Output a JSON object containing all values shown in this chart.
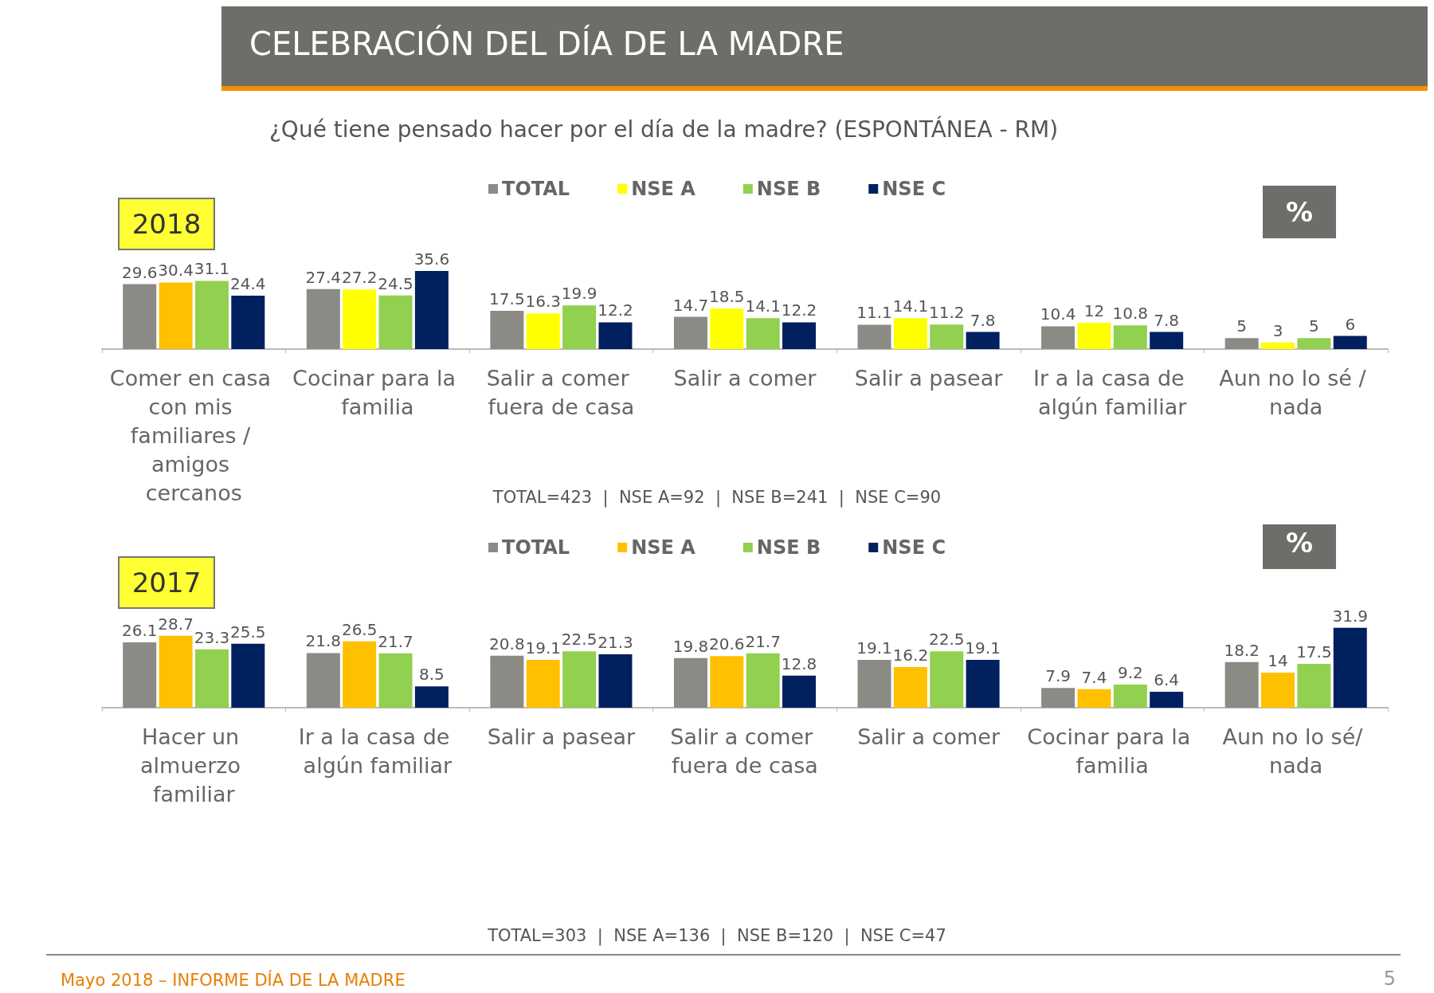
{
  "chart_data": [
    {
      "type": "bar",
      "title": "CELEBRACIÓN DEL DÍA DE LA MADRE",
      "subtitle": "¿Qué tiene pensado hacer por el día de la madre? (ESPONTÁNEA - RM)",
      "categories": [
        "Comer en casa con mis familiares / amigos cercanos",
        "Cocinar para la familia",
        "Salir a comer fuera de casa",
        "Salir a comer",
        "Salir a pasear",
        "Ir a la casa de algún familiar",
        "Aun no lo sé / nada"
      ],
      "series": [
        {
          "name": "TOTAL",
          "color": "#8c8a85",
          "values": [
            29.6,
            27.4,
            17.5,
            14.7,
            11.1,
            10.4,
            5
          ]
        },
        {
          "name": "NSE A",
          "color": "#ffff00",
          "colors": [
            "#ffc000",
            "#ffff00",
            "#ffff00",
            "#ffff00",
            "#ffff00",
            "#ffff00",
            "#ffff00"
          ],
          "values": [
            30.4,
            27.2,
            16.3,
            18.5,
            14.1,
            12,
            3
          ]
        },
        {
          "name": "NSE B",
          "color": "#92d050",
          "values": [
            31.1,
            24.5,
            19.9,
            14.1,
            11.2,
            10.8,
            5
          ]
        },
        {
          "name": "NSE C",
          "color": "#002060",
          "values": [
            24.4,
            35.6,
            12.2,
            12.2,
            7.8,
            7.8,
            6
          ]
        }
      ],
      "data_labels": true,
      "grid": false,
      "legend": "top",
      "annotations": [
        "2018",
        "%",
        "TOTAL=423  |  NSE A=92  |  NSE B=241  |  NSE C=90"
      ]
    },
    {
      "type": "bar",
      "categories": [
        "Hacer un almuerzo familiar",
        "Ir a la casa de algún familiar",
        "Salir a pasear",
        "Salir a comer fuera de casa",
        "Salir a comer",
        "Cocinar para la familia",
        "Aun no lo sé/ nada"
      ],
      "series": [
        {
          "name": "TOTAL",
          "color": "#8c8a85",
          "values": [
            26.1,
            21.8,
            20.8,
            19.8,
            19.1,
            7.9,
            18.2
          ]
        },
        {
          "name": "NSE A",
          "color": "#ffc000",
          "values": [
            28.7,
            26.5,
            19.1,
            20.6,
            16.2,
            7.4,
            14
          ]
        },
        {
          "name": "NSE B",
          "color": "#92d050",
          "values": [
            23.3,
            21.7,
            22.5,
            21.7,
            22.5,
            9.2,
            17.5
          ]
        },
        {
          "name": "NSE C",
          "color": "#002060",
          "values": [
            25.5,
            8.5,
            21.3,
            12.8,
            19.1,
            6.4,
            31.9
          ]
        }
      ],
      "data_labels": true,
      "grid": false,
      "legend": "top",
      "annotations": [
        "2017",
        "%",
        "TOTAL=303  |  NSE A=136  |  NSE B=120  |  NSE C=47",
        "Mayo 2018 – INFORME DÍA DE LA MADRE",
        "5"
      ]
    }
  ]
}
